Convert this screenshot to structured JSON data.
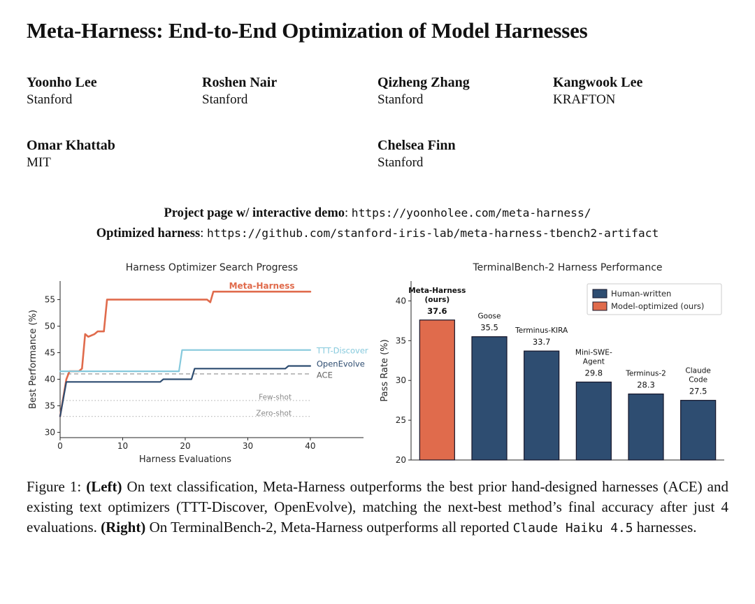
{
  "paper": {
    "title": "Meta-Harness: End-to-End Optimization of Model Harnesses"
  },
  "authors": [
    {
      "name": "Yoonho Lee",
      "affiliation": "Stanford"
    },
    {
      "name": "Roshen Nair",
      "affiliation": "Stanford"
    },
    {
      "name": "Qizheng Zhang",
      "affiliation": "Stanford"
    },
    {
      "name": "Kangwook Lee",
      "affiliation": "KRAFTON"
    },
    {
      "name": "Omar Khattab",
      "affiliation": "MIT"
    },
    {
      "name": "Chelsea Finn",
      "affiliation": "Stanford"
    }
  ],
  "links": [
    {
      "label": "Project page w/ interactive demo",
      "url": "https://yoonholee.com/meta-harness/"
    },
    {
      "label": "Optimized harness",
      "url": "https://github.com/stanford-iris-lab/meta-harness-tbench2-artifact"
    }
  ],
  "caption": {
    "segments": [
      {
        "text": "Figure 1: ",
        "style": "normal"
      },
      {
        "text": "(Left)",
        "style": "bold"
      },
      {
        "text": " On text classification, Meta-Harness outperforms the best prior hand-designed harnesses (ACE) and existing text optimizers (TTT-Discover, OpenEvolve), matching the next-best method’s final accuracy after just 4 evaluations. ",
        "style": "normal"
      },
      {
        "text": "(Right)",
        "style": "bold"
      },
      {
        "text": " On TerminalBench-2, Meta-Harness outperforms all reported ",
        "style": "normal"
      },
      {
        "text": "Claude Haiku 4.5",
        "style": "mono"
      },
      {
        "text": " harnesses.",
        "style": "normal"
      }
    ]
  },
  "chart_data": [
    {
      "type": "line",
      "title": "Harness Optimizer Search Progress",
      "xlabel": "Harness Evaluations",
      "ylabel": "Best Performance (%)",
      "xlim": [
        0,
        48.5
      ],
      "ylim": [
        29,
        58.5
      ],
      "xticks": [
        0,
        10,
        20,
        30,
        40
      ],
      "yticks": [
        30,
        35,
        40,
        45,
        50,
        55
      ],
      "grid": false,
      "series": [
        {
          "name": "Meta-Harness",
          "color": "#E06B4C",
          "width": 2.6,
          "bold_label": true,
          "label_pos": [
            27,
            57.6
          ],
          "label_anchor": "start",
          "points": [
            [
              0,
              33
            ],
            [
              1,
              40
            ],
            [
              1.5,
              41.5
            ],
            [
              3,
              41.5
            ],
            [
              3.5,
              42
            ],
            [
              4,
              48.5
            ],
            [
              4.5,
              48
            ],
            [
              5.5,
              48.5
            ],
            [
              6,
              49
            ],
            [
              7,
              49
            ],
            [
              7.5,
              55
            ],
            [
              23.5,
              55
            ],
            [
              24,
              54.5
            ],
            [
              24.5,
              56.5
            ],
            [
              40,
              56.5
            ]
          ]
        },
        {
          "name": "TTT-Discover",
          "color": "#85C9DC",
          "width": 2.2,
          "bold_label": false,
          "label_pos": [
            41,
            45.4
          ],
          "label_anchor": "start",
          "points": [
            [
              0,
              41.5
            ],
            [
              19,
              41.5
            ],
            [
              19.5,
              45.5
            ],
            [
              40,
              45.5
            ]
          ]
        },
        {
          "name": "OpenEvolve",
          "color": "#2E4D71",
          "width": 2.2,
          "bold_label": false,
          "label_pos": [
            41,
            42.9
          ],
          "label_anchor": "start",
          "points": [
            [
              0,
              33
            ],
            [
              1,
              39.5
            ],
            [
              16,
              39.5
            ],
            [
              16.5,
              40
            ],
            [
              21,
              40
            ],
            [
              21.5,
              42
            ],
            [
              36,
              42
            ],
            [
              36.5,
              42.5
            ],
            [
              40,
              42.5
            ]
          ]
        }
      ],
      "ref_lines": [
        {
          "name": "ACE",
          "y": 41,
          "style": "dashed",
          "color": "#999999",
          "label_color": "#666666",
          "label_pos": [
            41,
            40.8
          ],
          "label_anchor": "start",
          "label_size": 11.5
        },
        {
          "name": "Few-shot",
          "y": 36,
          "style": "dotted",
          "color": "#bbbbbb",
          "label_color": "#8a8a8a",
          "label_pos": [
            37,
            36.7
          ],
          "label_anchor": "end",
          "label_size": 10.5
        },
        {
          "name": "Zero-shot",
          "y": 33,
          "style": "dotted",
          "color": "#bbbbbb",
          "label_color": "#8a8a8a",
          "label_pos": [
            37,
            33.7
          ],
          "label_anchor": "end",
          "label_size": 10.5
        }
      ]
    },
    {
      "type": "bar",
      "title": "TerminalBench-2 Harness Performance",
      "ylabel": "Pass Rate (%)",
      "ylim": [
        20,
        42.5
      ],
      "yticks": [
        20,
        25,
        30,
        35,
        40
      ],
      "grid": false,
      "bars": [
        {
          "name_lines": [
            "Meta-Harness",
            "(ours)"
          ],
          "value": 37.6,
          "color": "#E06B4C",
          "bold": true
        },
        {
          "name_lines": [
            "Goose"
          ],
          "value": 35.5,
          "color": "#2E4D71",
          "bold": false
        },
        {
          "name_lines": [
            "Terminus-KIRA"
          ],
          "value": 33.7,
          "color": "#2E4D71",
          "bold": false
        },
        {
          "name_lines": [
            "Mini-SWE-",
            "Agent"
          ],
          "value": 29.8,
          "color": "#2E4D71",
          "bold": false
        },
        {
          "name_lines": [
            "Terminus-2"
          ],
          "value": 28.3,
          "color": "#2E4D71",
          "bold": false
        },
        {
          "name_lines": [
            "Claude",
            "Code"
          ],
          "value": 27.5,
          "color": "#2E4D71",
          "bold": false
        }
      ],
      "legend": [
        {
          "label": "Human-written",
          "color": "#2E4D71"
        },
        {
          "label": "Model-optimized (ours)",
          "color": "#E06B4C"
        }
      ],
      "legend_position": "upper right"
    }
  ]
}
